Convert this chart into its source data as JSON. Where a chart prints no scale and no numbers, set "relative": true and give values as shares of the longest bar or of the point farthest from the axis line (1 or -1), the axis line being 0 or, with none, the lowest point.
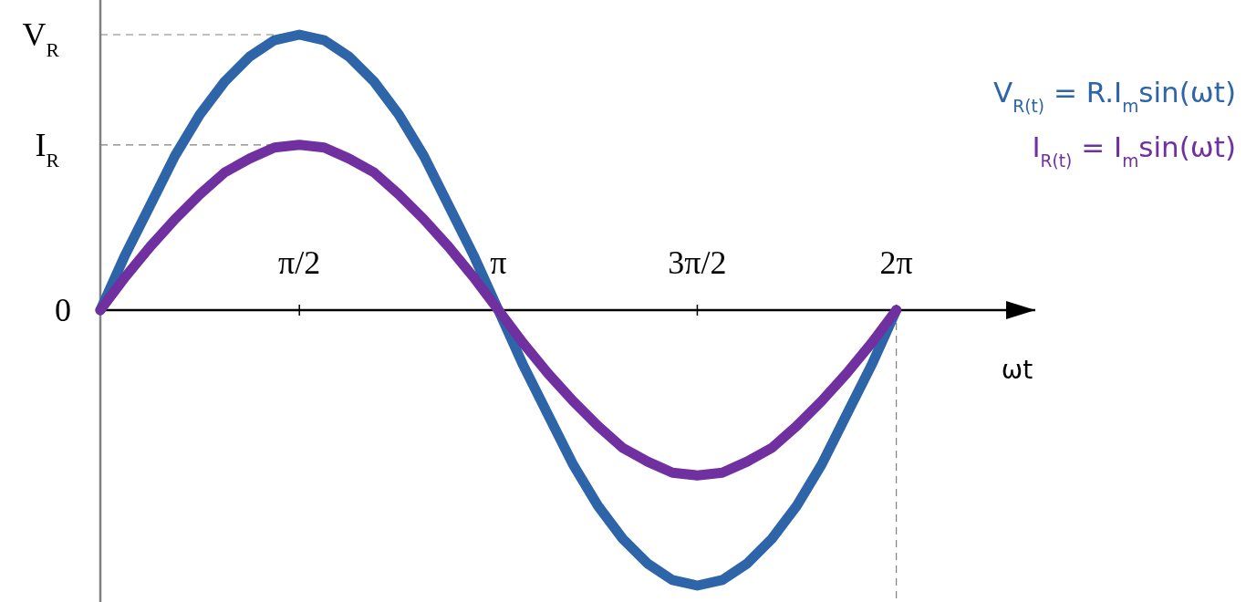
{
  "chart_data": {
    "type": "line",
    "relative": true,
    "xlabel": "ωt",
    "line_style": "solid",
    "x": [
      0,
      0.196,
      0.393,
      0.589,
      0.785,
      0.982,
      1.178,
      1.374,
      1.571,
      1.767,
      1.963,
      2.16,
      2.356,
      2.553,
      2.749,
      2.945,
      3.142,
      3.338,
      3.534,
      3.731,
      3.927,
      4.123,
      4.32,
      4.516,
      4.712,
      4.909,
      5.105,
      5.301,
      5.498,
      5.694,
      5.89,
      6.087,
      6.283
    ],
    "xlim": [
      0,
      7.38
    ],
    "xticks": [
      {
        "value": 1.571,
        "label": "π/2"
      },
      {
        "value": 3.142,
        "label": "π"
      },
      {
        "value": 4.712,
        "label": "3π/2"
      },
      {
        "value": 6.283,
        "label": "2π"
      }
    ],
    "series": [
      {
        "name": "V$_{R(t)}$ = R.I$_{m}$sin(ωt)",
        "color": "#2e64a8",
        "values": [
          0,
          0.2,
          0.38,
          0.56,
          0.71,
          0.83,
          0.92,
          0.98,
          1,
          0.98,
          0.92,
          0.83,
          0.71,
          0.56,
          0.38,
          0.2,
          0,
          -0.2,
          -0.38,
          -0.56,
          -0.71,
          -0.83,
          -0.92,
          -0.98,
          -1,
          -0.98,
          -0.92,
          -0.83,
          -0.71,
          -0.56,
          -0.38,
          -0.2,
          0
        ]
      },
      {
        "name": "I$_{R(t)}$ = I$_{m}$sin(ωt)",
        "color": "#7030a0",
        "values": [
          0,
          0.12,
          0.23,
          0.33,
          0.42,
          0.5,
          0.55,
          0.59,
          0.6,
          0.59,
          0.55,
          0.5,
          0.42,
          0.33,
          0.23,
          0.12,
          0,
          -0.12,
          -0.23,
          -0.33,
          -0.42,
          -0.5,
          -0.55,
          -0.59,
          -0.6,
          -0.59,
          -0.55,
          -0.5,
          -0.42,
          -0.33,
          -0.23,
          -0.12,
          0
        ]
      }
    ],
    "annotations": [
      {
        "text": "0",
        "x": 0,
        "y": 0
      }
    ],
    "ref_lines": [
      {
        "axis": "y",
        "value": 1,
        "label": "V$_{R}$",
        "line_style": "dashed",
        "color": "#808080"
      },
      {
        "axis": "y",
        "value": 0.6,
        "label": "I$_{R}$",
        "line_style": "dashed",
        "color": "#808080"
      },
      {
        "axis": "x",
        "value": 6.283,
        "label": null,
        "line_style": "dashed",
        "color": "#808080"
      }
    ]
  }
}
